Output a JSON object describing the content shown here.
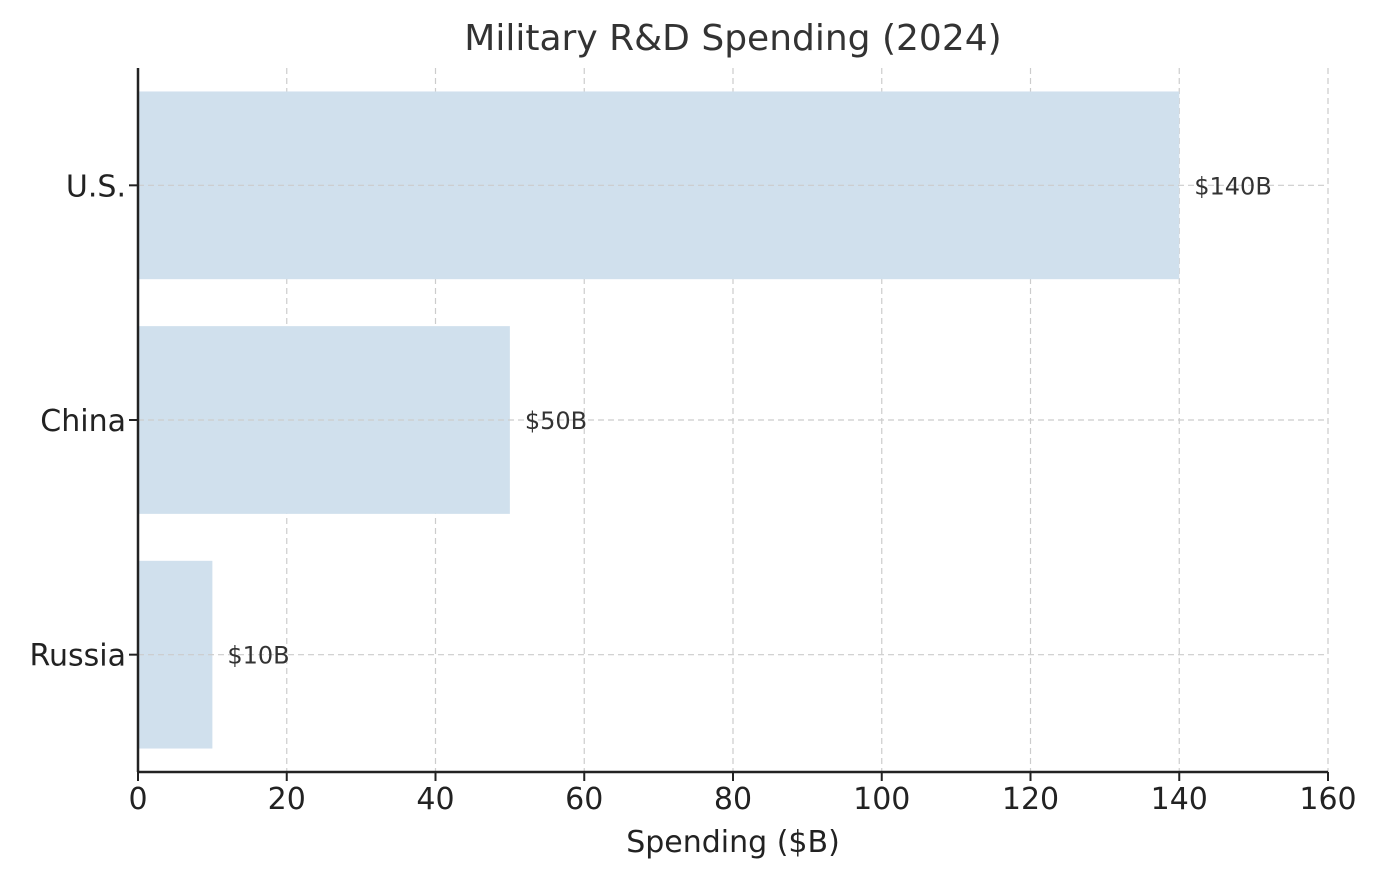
{
  "chart_data": {
    "type": "bar",
    "orientation": "horizontal",
    "title": "Military R&D Spending (2024)",
    "xlabel": "Spending ($B)",
    "ylabel": "",
    "categories": [
      "U.S.",
      "China",
      "Russia"
    ],
    "values": [
      140,
      50,
      10
    ],
    "data_labels": [
      "$140B",
      "$50B",
      "$10B"
    ],
    "xlim": [
      0,
      160
    ],
    "x_ticks": [
      0,
      20,
      40,
      60,
      80,
      100,
      120,
      140,
      160
    ],
    "grid": true,
    "bar_color": "#d0e0ed",
    "grid_color": "#cccccc",
    "axis_color": "#222222"
  }
}
